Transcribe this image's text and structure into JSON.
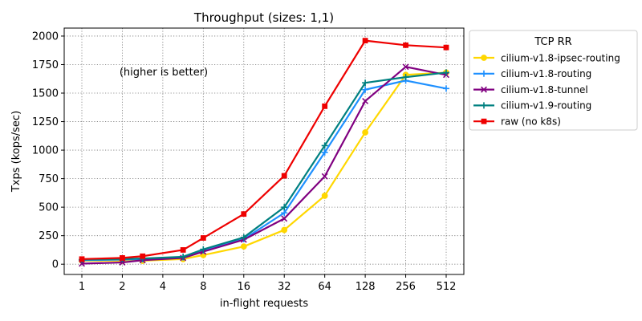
{
  "chart_data": {
    "type": "line",
    "title": "Throughput (sizes: 1,1)",
    "xlabel": "in-flight requests",
    "ylabel": "Txps (kops/sec)",
    "annotation": "(higher is better)",
    "legend_title": "TCP RR",
    "legend_position": "outside-right-top",
    "grid": true,
    "x_scale": "log2",
    "x": [
      1,
      2,
      4,
      8,
      16,
      32,
      64,
      128,
      256,
      512
    ],
    "x_tick_labels": [
      "1",
      "2",
      "4",
      "8",
      "16",
      "32",
      "64",
      "128",
      "256",
      "512"
    ],
    "ylim": [
      -90,
      2070
    ],
    "y_ticks": [
      0,
      250,
      500,
      750,
      1000,
      1250,
      1500,
      1750,
      2000
    ],
    "y_tick_labels": [
      "0",
      "250",
      "500",
      "750",
      "1000",
      "1250",
      "1500",
      "1750",
      "2000"
    ],
    "series": [
      {
        "name": "cilium-v1.8-ipsec-routing",
        "color": "#ffd700",
        "marker": "circle",
        "x": [
          1,
          2,
          2.83,
          5.66,
          8,
          16,
          32,
          64,
          128,
          256,
          512
        ],
        "values": [
          30,
          30,
          30,
          45,
          80,
          155,
          300,
          600,
          1155,
          1660,
          1680
        ]
      },
      {
        "name": "cilium-v1.8-routing",
        "color": "#1e90ff",
        "marker": "plus",
        "x": [
          1,
          2,
          2.83,
          5.66,
          8,
          16,
          32,
          64,
          128,
          256,
          512
        ],
        "values": [
          35,
          40,
          45,
          60,
          120,
          220,
          450,
          980,
          1530,
          1610,
          1540
        ]
      },
      {
        "name": "cilium-v1.8-tunnel",
        "color": "#800080",
        "marker": "x",
        "x": [
          1,
          2,
          2.83,
          5.66,
          8,
          16,
          32,
          64,
          128,
          256,
          512
        ],
        "values": [
          5,
          15,
          35,
          55,
          110,
          215,
          400,
          770,
          1430,
          1730,
          1660
        ]
      },
      {
        "name": "cilium-v1.9-routing",
        "color": "#008080",
        "marker": "plus",
        "x": [
          1,
          2,
          2.83,
          5.66,
          8,
          16,
          32,
          64,
          128,
          256,
          512
        ],
        "values": [
          40,
          45,
          50,
          65,
          130,
          235,
          500,
          1040,
          1590,
          1640,
          1680
        ]
      },
      {
        "name": "raw (no k8s)",
        "color": "#ee0000",
        "marker": "square",
        "x": [
          1,
          2,
          2.83,
          5.66,
          8,
          16,
          32,
          64,
          128,
          256,
          512
        ],
        "values": [
          45,
          55,
          70,
          125,
          230,
          440,
          775,
          1385,
          1960,
          1920,
          1900
        ]
      }
    ]
  }
}
